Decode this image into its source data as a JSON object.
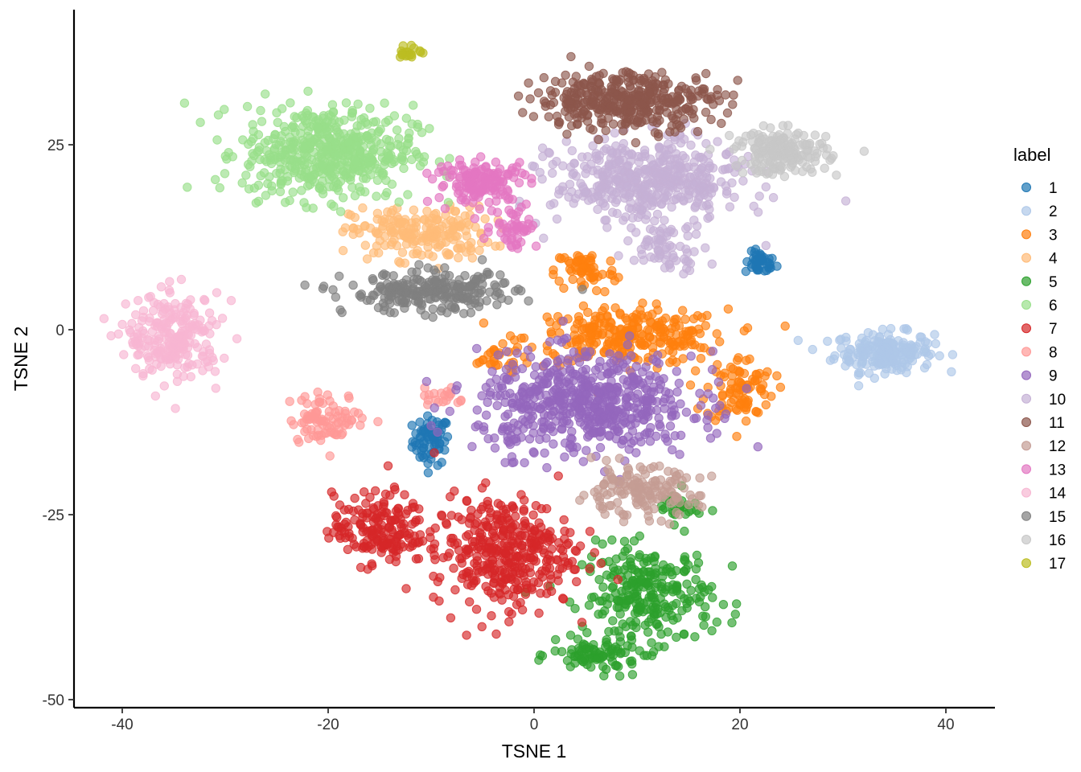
{
  "chart_data": {
    "type": "scatter",
    "xlabel": "TSNE 1",
    "ylabel": "TSNE 2",
    "xlim": [
      -45,
      45
    ],
    "ylim": [
      -51,
      43
    ],
    "x_ticks": [
      -40,
      -20,
      0,
      20,
      40
    ],
    "y_ticks": [
      -50,
      -25,
      0,
      25
    ],
    "x_tick_labels": [
      "-40",
      "-20",
      "0",
      "20",
      "40"
    ],
    "y_tick_labels": [
      "-50",
      "-25",
      "0",
      "25"
    ],
    "grid": false,
    "legend": {
      "title": "label",
      "position": "right"
    },
    "series": [
      {
        "name": "1",
        "color": "#1f77b4",
        "clusters": [
          {
            "cx": -10,
            "cy": -15,
            "sx": 1.2,
            "sy": 2.2,
            "n": 70
          },
          {
            "cx": 22,
            "cy": 9,
            "sx": 1.0,
            "sy": 1.0,
            "n": 40
          }
        ]
      },
      {
        "name": "2",
        "color": "#aec7e8",
        "clusters": [
          {
            "cx": 34,
            "cy": -3,
            "sx": 3.2,
            "sy": 1.8,
            "n": 200
          }
        ]
      },
      {
        "name": "3",
        "color": "#ff7f0e",
        "clusters": [
          {
            "cx": 9,
            "cy": -1,
            "sx": 6.5,
            "sy": 2.5,
            "n": 280
          },
          {
            "cx": 5,
            "cy": 8,
            "sx": 2.0,
            "sy": 2.0,
            "n": 60
          },
          {
            "cx": 20,
            "cy": -8,
            "sx": 2.2,
            "sy": 3.0,
            "n": 90
          },
          {
            "cx": -4,
            "cy": -4,
            "sx": 2.0,
            "sy": 1.2,
            "n": 25
          }
        ]
      },
      {
        "name": "4",
        "color": "#ffbb78",
        "clusters": [
          {
            "cx": -11,
            "cy": 13,
            "sx": 4.5,
            "sy": 2.4,
            "n": 200
          }
        ]
      },
      {
        "name": "5",
        "color": "#2ca02c",
        "clusters": [
          {
            "cx": 11,
            "cy": -36,
            "sx": 4.2,
            "sy": 4.5,
            "n": 270
          },
          {
            "cx": 6,
            "cy": -44,
            "sx": 2.8,
            "sy": 1.5,
            "n": 80
          },
          {
            "cx": 14,
            "cy": -24,
            "sx": 1.5,
            "sy": 1.5,
            "n": 30
          }
        ]
      },
      {
        "name": "6",
        "color": "#98df8a",
        "clusters": [
          {
            "cx": -20,
            "cy": 24,
            "sx": 5.5,
            "sy": 4.2,
            "n": 520
          }
        ]
      },
      {
        "name": "7",
        "color": "#d62728",
        "clusters": [
          {
            "cx": -3,
            "cy": -30,
            "sx": 4.5,
            "sy": 5.0,
            "n": 380
          },
          {
            "cx": -15,
            "cy": -27,
            "sx": 3.0,
            "sy": 3.2,
            "n": 180
          }
        ]
      },
      {
        "name": "8",
        "color": "#ff9896",
        "clusters": [
          {
            "cx": -20,
            "cy": -12,
            "sx": 2.5,
            "sy": 2.2,
            "n": 90
          },
          {
            "cx": -9,
            "cy": -9,
            "sx": 1.5,
            "sy": 1.2,
            "n": 20
          }
        ]
      },
      {
        "name": "9",
        "color": "#9467bd",
        "clusters": [
          {
            "cx": 5,
            "cy": -10,
            "sx": 7.0,
            "sy": 4.5,
            "n": 600
          }
        ]
      },
      {
        "name": "10",
        "color": "#c5b0d5",
        "clusters": [
          {
            "cx": 11,
            "cy": 20,
            "sx": 6.0,
            "sy": 3.8,
            "n": 480
          },
          {
            "cx": 13,
            "cy": 11,
            "sx": 2.5,
            "sy": 2.0,
            "n": 60
          }
        ]
      },
      {
        "name": "11",
        "color": "#8c564b",
        "clusters": [
          {
            "cx": 9,
            "cy": 31,
            "sx": 5.8,
            "sy": 2.6,
            "n": 380
          }
        ]
      },
      {
        "name": "12",
        "color": "#c49c94",
        "clusters": [
          {
            "cx": 10,
            "cy": -22,
            "sx": 4.0,
            "sy": 2.2,
            "n": 150
          }
        ]
      },
      {
        "name": "13",
        "color": "#e377c2",
        "clusters": [
          {
            "cx": -5,
            "cy": 20,
            "sx": 3.0,
            "sy": 2.0,
            "n": 150
          },
          {
            "cx": -2,
            "cy": 14,
            "sx": 1.5,
            "sy": 2.0,
            "n": 50
          }
        ]
      },
      {
        "name": "14",
        "color": "#f7b6d2",
        "clusters": [
          {
            "cx": -35,
            "cy": -1,
            "sx": 3.0,
            "sy": 3.8,
            "n": 240
          }
        ]
      },
      {
        "name": "15",
        "color": "#7f7f7f",
        "clusters": [
          {
            "cx": -10,
            "cy": 5,
            "sx": 5.5,
            "sy": 1.8,
            "n": 240
          }
        ]
      },
      {
        "name": "16",
        "color": "#c7c7c7",
        "clusters": [
          {
            "cx": 24,
            "cy": 24,
            "sx": 3.0,
            "sy": 2.0,
            "n": 180
          }
        ]
      },
      {
        "name": "17",
        "color": "#bcbd22",
        "clusters": [
          {
            "cx": -12,
            "cy": 37.5,
            "sx": 0.9,
            "sy": 0.7,
            "n": 20
          }
        ]
      }
    ]
  }
}
